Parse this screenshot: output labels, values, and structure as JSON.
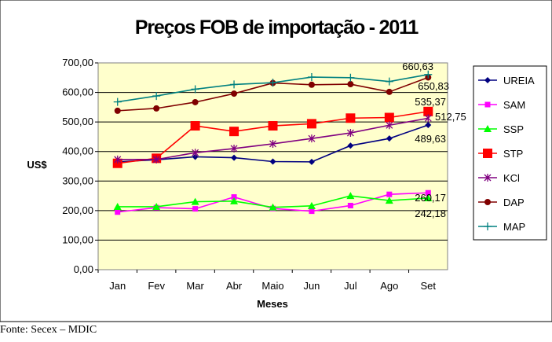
{
  "source": "Fonte: Secex – MDIC",
  "chart_data": {
    "type": "line",
    "title": "Preços FOB de importação - 2011",
    "xlabel": "Meses",
    "ylabel": "US$",
    "ylim": [
      0,
      700
    ],
    "ytick_labels": [
      "0,00",
      "100,00",
      "200,00",
      "300,00",
      "400,00",
      "500,00",
      "600,00",
      "700,00"
    ],
    "categories": [
      "Jan",
      "Fev",
      "Mar",
      "Abr",
      "Maio",
      "Jun",
      "Jul",
      "Ago",
      "Set"
    ],
    "grid": true,
    "legend_position": "right",
    "plot_background": "#FFFFCC",
    "series": [
      {
        "name": "UREIA",
        "color": "#000080",
        "marker": "diamond",
        "values": [
          365,
          372,
          382,
          379,
          366,
          365,
          420,
          444,
          489.63
        ]
      },
      {
        "name": "SAM",
        "color": "#FF00FF",
        "marker": "square",
        "values": [
          195,
          210,
          206,
          246,
          207,
          198,
          217,
          255,
          260.17
        ]
      },
      {
        "name": "SSP",
        "color": "#00FF00",
        "marker": "triangle",
        "values": [
          213,
          213,
          230,
          232,
          211,
          216,
          250,
          234,
          242.18
        ]
      },
      {
        "name": "STP",
        "color": "#FF0000",
        "marker": "bigsquare",
        "values": [
          360,
          377,
          487,
          468,
          487,
          494,
          513,
          515,
          535.37
        ]
      },
      {
        "name": "KCl",
        "color": "#800080",
        "marker": "star",
        "values": [
          373,
          373,
          396,
          410,
          426,
          444,
          463,
          489,
          512.75
        ]
      },
      {
        "name": "DAP",
        "color": "#800000",
        "marker": "circle",
        "values": [
          538,
          546,
          567,
          596,
          632,
          626,
          628,
          602,
          650.83
        ]
      },
      {
        "name": "MAP",
        "color": "#008080",
        "marker": "plus",
        "values": [
          568,
          588,
          611,
          627,
          633,
          652,
          650,
          637,
          660.63
        ]
      }
    ],
    "data_labels": [
      "660,63",
      "650,83",
      "535,37",
      "512,75",
      "489,63",
      "260,17",
      "242,18"
    ]
  }
}
